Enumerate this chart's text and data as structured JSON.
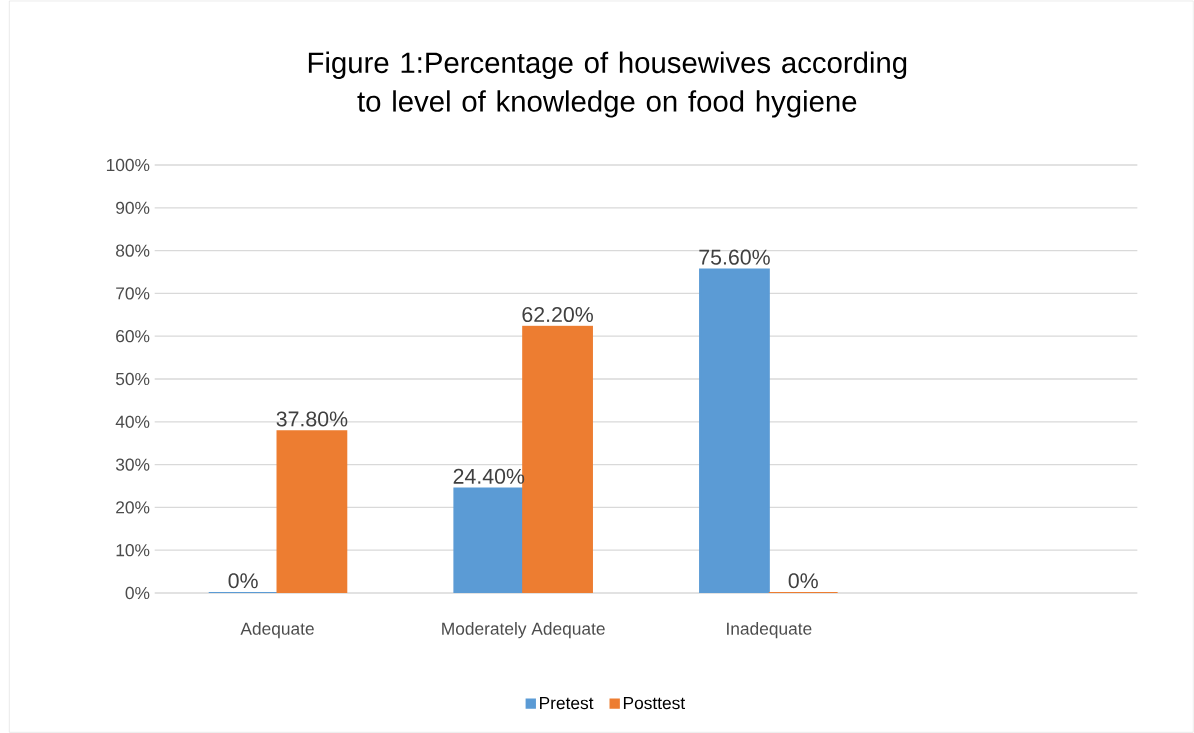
{
  "chart_data": {
    "type": "bar",
    "title": "Figure 1:Percentage of housewives according to level of knowledge on food hygiene",
    "categories": [
      "Adequate",
      "Moderately Adequate",
      "Inadequate"
    ],
    "series": [
      {
        "name": "Pretest",
        "color": "#5b9bd5",
        "values": [
          0,
          24.4,
          75.6
        ],
        "value_labels": [
          "0%",
          "24.40%",
          "75.60%"
        ]
      },
      {
        "name": "Posttest",
        "color": "#ed7d31",
        "values": [
          37.8,
          62.2,
          0
        ],
        "value_labels": [
          "37.80%",
          "62.20%",
          "0%"
        ]
      }
    ],
    "ylim": [
      0,
      100
    ],
    "yticks": [
      {
        "value": 0,
        "label": "0%"
      },
      {
        "value": 10,
        "label": "10%"
      },
      {
        "value": 20,
        "label": "20%"
      },
      {
        "value": 30,
        "label": "30%"
      },
      {
        "value": 40,
        "label": "40%"
      },
      {
        "value": 50,
        "label": "50%"
      },
      {
        "value": 60,
        "label": "60%"
      },
      {
        "value": 70,
        "label": "70%"
      },
      {
        "value": 80,
        "label": "80%"
      },
      {
        "value": 90,
        "label": "90%"
      },
      {
        "value": 100,
        "label": "100%"
      }
    ],
    "grid": "y",
    "legend": "bottom"
  }
}
